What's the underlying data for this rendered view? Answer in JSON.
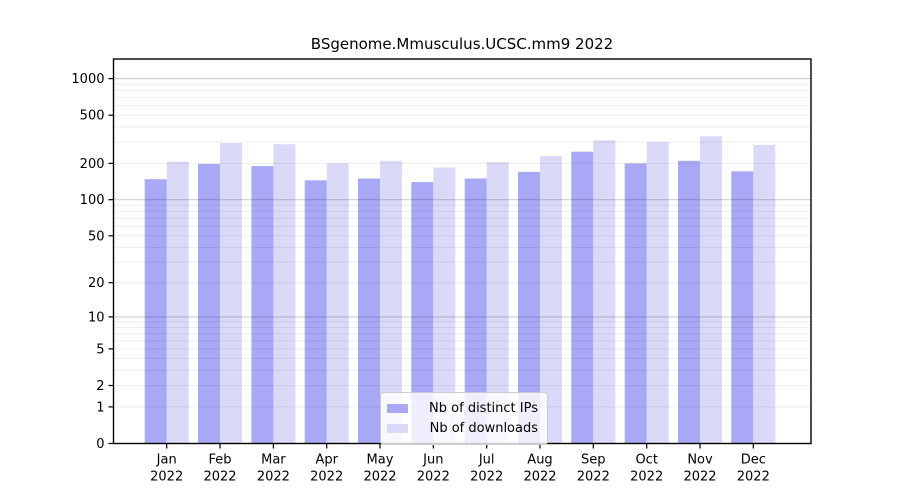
{
  "chart_data": {
    "type": "bar",
    "title": "BSgenome.Mmusculus.UCSC.mm9 2022",
    "year": "2022",
    "months": [
      "Jan",
      "Feb",
      "Mar",
      "Apr",
      "May",
      "Jun",
      "Jul",
      "Aug",
      "Sep",
      "Oct",
      "Nov",
      "Dec"
    ],
    "series": [
      {
        "name": "Nb of distinct IPs",
        "color": "#a8a8f6",
        "values": [
          148,
          198,
          190,
          145,
          150,
          140,
          150,
          170,
          250,
          200,
          210,
          172
        ]
      },
      {
        "name": "Nb of downloads",
        "color": "#dadaf8",
        "values": [
          207,
          295,
          288,
          200,
          210,
          185,
          205,
          230,
          310,
          300,
          335,
          285
        ]
      }
    ],
    "yscale": "log1p",
    "ylim": [
      0,
      1450
    ],
    "yticks": [
      0,
      1,
      2,
      5,
      10,
      20,
      50,
      100,
      200,
      500,
      1000
    ],
    "grid": "horizontal, minor lines at 2-9 per decade, drawn over bars",
    "legend_position": "bottom-center inside plot",
    "xlabel": "",
    "ylabel": ""
  }
}
